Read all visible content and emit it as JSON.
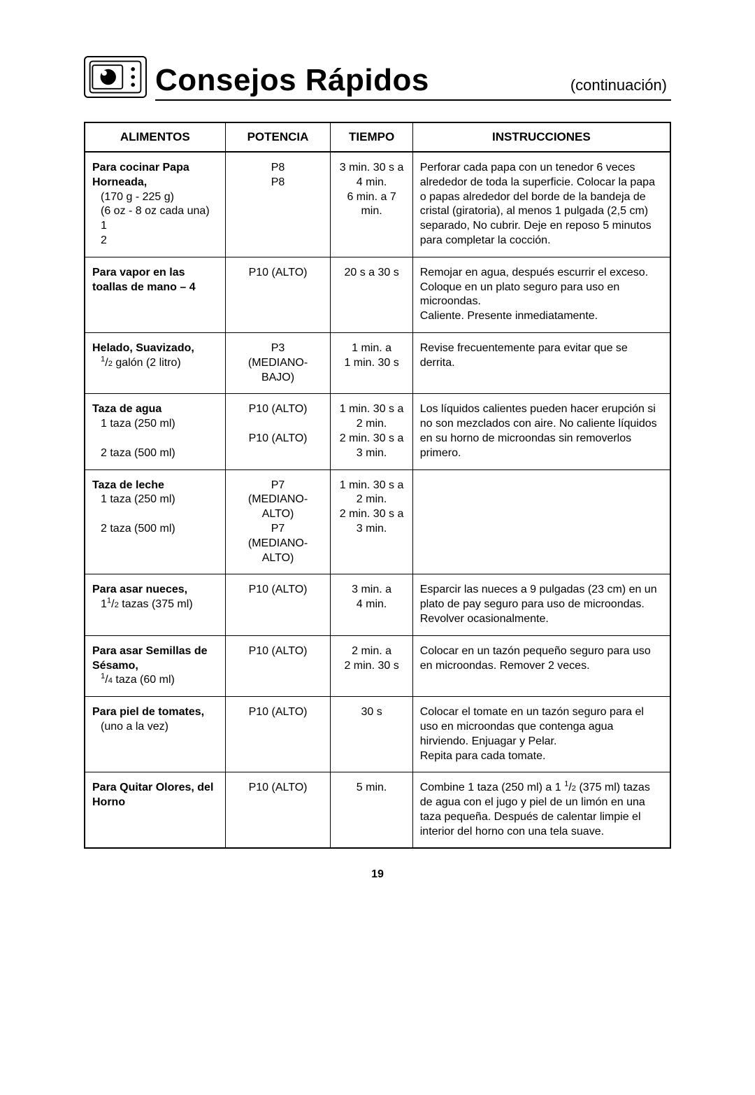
{
  "header": {
    "title": "Consejos Rápidos",
    "subtitle": "(continuación)"
  },
  "columns": {
    "alimentos": "ALIMENTOS",
    "potencia": "POTENCIA",
    "tiempo": "TIEMPO",
    "instrucciones": "INSTRUCCIONES"
  },
  "rows": [
    {
      "food_title": "Para cocinar Papa Horneada,",
      "food_lines": [
        "(170 g - 225 g)",
        "(6 oz - 8 oz cada una)",
        "1",
        "2"
      ],
      "potencia": "P8\nP8",
      "tiempo": "3 min. 30 s a 4 min.\n6 min. a 7 min.",
      "instr": "Perforar cada papa con un tenedor 6 veces alrededor de toda la superficie. Colocar la papa o papas alrededor del borde de la bandeja de cristal (giratoria), al menos 1 pulgada (2,5 cm) separado, No cubrir. Deje en reposo 5 minutos para completar la cocción."
    },
    {
      "food_title": "Para vapor en las toallas de mano – 4",
      "food_lines": [],
      "potencia": "P10 (ALTO)",
      "tiempo": "20 s a 30 s",
      "instr": "Remojar en agua, después escurrir el exceso. Coloque en un plato seguro para uso en microondas.\nCaliente. Presente inmediatamente."
    },
    {
      "food_title": "Helado, Suavizado,",
      "food_lines": [
        "__HALF__ galón (2 litro)"
      ],
      "potencia": "P3\n(MEDIANO-BAJO)",
      "tiempo": "1 min. a\n1 min. 30 s",
      "instr": "Revise frecuentemente para evitar que se derrita."
    },
    {
      "food_title": "Taza de agua",
      "food_lines": [
        "1 taza (250 ml)",
        "",
        "2 taza (500 ml)"
      ],
      "potencia": "P10 (ALTO)\n\nP10 (ALTO)",
      "tiempo": "1 min. 30 s a 2 min.\n2 min. 30 s a 3 min.",
      "instr": "Los líquidos calientes pueden hacer erupción si no son mezclados con aire. No caliente líquidos en su horno de microondas sin removerlos primero."
    },
    {
      "food_title": "Taza de leche",
      "food_lines": [
        "1 taza (250 ml)",
        "",
        "2 taza (500 ml)"
      ],
      "potencia": "P7\n(MEDIANO-ALTO)\nP7\n(MEDIANO-ALTO)",
      "tiempo": "1 min. 30 s a 2 min.\n2 min. 30 s a 3 min.",
      "instr": ""
    },
    {
      "food_title": "Para asar nueces,",
      "food_lines": [
        "1__HALF__ tazas (375 ml)"
      ],
      "potencia": "P10 (ALTO)",
      "tiempo": "3 min. a\n4 min.",
      "instr": "Esparcir las nueces a 9 pulgadas (23 cm) en un plato de pay seguro para uso de microondas.\nRevolver ocasionalmente."
    },
    {
      "food_title": "Para asar Semillas de Sésamo,",
      "food_lines": [
        "__QUARTER__ taza (60 ml)"
      ],
      "potencia": "P10 (ALTO)",
      "tiempo": "2 min. a\n2 min. 30 s",
      "instr": "Colocar en un tazón pequeño seguro para uso en microondas. Remover 2 veces."
    },
    {
      "food_title": "Para piel de tomates,",
      "food_lines": [
        "(uno a la vez)"
      ],
      "potencia": "P10 (ALTO)",
      "tiempo": "30 s",
      "instr": "Colocar el tomate en un tazón seguro para el uso en microondas que contenga agua hirviendo.  Enjuagar y Pelar.\nRepita para cada tomate."
    },
    {
      "food_title": "Para Quitar Olores, del Horno",
      "food_lines": [],
      "potencia": "P10 (ALTO)",
      "tiempo": "5 min.",
      "instr": "Combine 1 taza (250 ml) a 1 __HALF__ (375 ml) tazas de agua con el jugo y piel de un limón en una taza pequeña. Después de calentar limpie el interior del horno con una tela suave."
    }
  ],
  "page_number": "19"
}
